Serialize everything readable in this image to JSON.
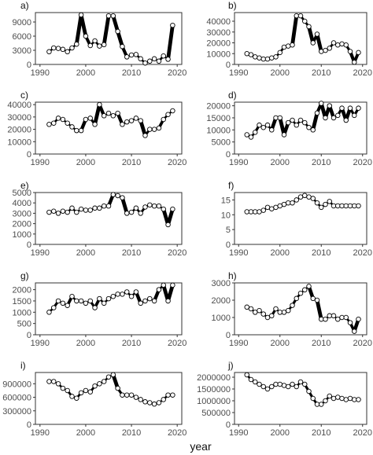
{
  "figure": {
    "xlabel": "year"
  },
  "chart_data": [
    {
      "panel": "a)",
      "type": "line",
      "x": [
        1992,
        1993,
        1994,
        1995,
        1996,
        1997,
        1998,
        1999,
        2000,
        2001,
        2002,
        2003,
        2004,
        2005,
        2006,
        2007,
        2008,
        2009,
        2010,
        2011,
        2012,
        2013,
        2014,
        2015,
        2016,
        2017,
        2018,
        2019
      ],
      "y": [
        2700,
        3500,
        3400,
        3200,
        2700,
        3500,
        4300,
        10500,
        6000,
        4000,
        5000,
        3900,
        4200,
        10300,
        10300,
        7000,
        3800,
        1600,
        2000,
        2100,
        1200,
        300,
        700,
        1200,
        700,
        1800,
        1100,
        8300
      ],
      "xlim": [
        1989,
        2021
      ],
      "ylim": [
        0,
        11000
      ],
      "yticks": [
        0,
        3000,
        6000,
        9000
      ],
      "ytick_labels": [
        "0",
        "3000",
        "6000",
        "9000"
      ],
      "xticks": [
        1990,
        2000,
        2010,
        2020
      ],
      "grid": false
    },
    {
      "panel": "b)",
      "type": "line",
      "x": [
        1992,
        1993,
        1994,
        1995,
        1996,
        1997,
        1998,
        1999,
        2000,
        2001,
        2002,
        2003,
        2004,
        2005,
        2006,
        2007,
        2008,
        2009,
        2010,
        2011,
        2012,
        2013,
        2014,
        2015,
        2016,
        2017,
        2018,
        2019
      ],
      "y": [
        10000,
        9000,
        7000,
        6000,
        5000,
        5000,
        6000,
        7000,
        11000,
        16000,
        17000,
        18000,
        45000,
        45000,
        40000,
        35000,
        20000,
        28000,
        12000,
        13000,
        15000,
        20000,
        18000,
        19000,
        18000,
        12000,
        2000,
        11000
      ],
      "xlim": [
        1989,
        2021
      ],
      "ylim": [
        0,
        48000
      ],
      "yticks": [
        0,
        10000,
        20000,
        30000,
        40000
      ],
      "ytick_labels": [
        "0",
        "10000",
        "20000",
        "30000",
        "40000"
      ],
      "xticks": [
        1990,
        2000,
        2010,
        2020
      ],
      "grid": false
    },
    {
      "panel": "c)",
      "type": "line",
      "x": [
        1992,
        1993,
        1994,
        1995,
        1996,
        1997,
        1998,
        1999,
        2000,
        2001,
        2002,
        2003,
        2004,
        2005,
        2006,
        2007,
        2008,
        2009,
        2010,
        2011,
        2012,
        2013,
        2014,
        2015,
        2016,
        2017,
        2018,
        2019
      ],
      "y": [
        24000,
        25000,
        29000,
        28000,
        25000,
        22000,
        19000,
        19000,
        28000,
        29000,
        24000,
        40000,
        31000,
        33000,
        31000,
        33000,
        24000,
        26000,
        27000,
        29000,
        27000,
        15000,
        20000,
        20000,
        21000,
        28000,
        32000,
        35000
      ],
      "xlim": [
        1989,
        2021
      ],
      "ylim": [
        0,
        42000
      ],
      "yticks": [
        0,
        10000,
        20000,
        30000,
        40000
      ],
      "ytick_labels": [
        "0",
        "10000",
        "20000",
        "30000",
        "40000"
      ],
      "xticks": [
        1990,
        2000,
        2010,
        2020
      ],
      "grid": false
    },
    {
      "panel": "d)",
      "type": "line",
      "x": [
        1992,
        1993,
        1994,
        1995,
        1996,
        1997,
        1998,
        1999,
        2000,
        2001,
        2002,
        2003,
        2004,
        2005,
        2006,
        2007,
        2008,
        2009,
        2010,
        2011,
        2012,
        2013,
        2014,
        2015,
        2016,
        2017,
        2018,
        2019
      ],
      "y": [
        8000,
        7000,
        9000,
        12000,
        11000,
        12000,
        10000,
        15000,
        15000,
        8000,
        13000,
        14000,
        12000,
        14000,
        13000,
        11000,
        10000,
        17000,
        21000,
        15000,
        20000,
        15000,
        16000,
        19000,
        14000,
        19000,
        16000,
        19000
      ],
      "xlim": [
        1989,
        2021
      ],
      "ylim": [
        0,
        21500
      ],
      "yticks": [
        0,
        5000,
        10000,
        15000,
        20000
      ],
      "ytick_labels": [
        "0",
        "5000",
        "10000",
        "15000",
        "20000"
      ],
      "xticks": [
        1990,
        2000,
        2010,
        2020
      ],
      "grid": false
    },
    {
      "panel": "e)",
      "type": "line",
      "x": [
        1992,
        1993,
        1994,
        1995,
        1996,
        1997,
        1998,
        1999,
        2000,
        2001,
        2002,
        2003,
        2004,
        2005,
        2006,
        2007,
        2008,
        2009,
        2010,
        2011,
        2012,
        2013,
        2014,
        2015,
        2016,
        2017,
        2018,
        2019
      ],
      "y": [
        3100,
        3200,
        3000,
        3200,
        3100,
        3500,
        3100,
        3400,
        3300,
        3300,
        3500,
        3500,
        3700,
        3700,
        4800,
        4700,
        4500,
        3000,
        3100,
        3500,
        3000,
        3600,
        3800,
        3700,
        3700,
        3400,
        1900,
        3400
      ],
      "xlim": [
        1989,
        2021
      ],
      "ylim": [
        0,
        5000
      ],
      "yticks": [
        0,
        1000,
        2000,
        3000,
        4000,
        5000
      ],
      "ytick_labels": [
        "0",
        "1000",
        "2000",
        "3000",
        "4000",
        "5000"
      ],
      "xticks": [
        1990,
        2000,
        2010,
        2020
      ],
      "grid": false
    },
    {
      "panel": "f)",
      "type": "line",
      "x": [
        1992,
        1993,
        1994,
        1995,
        1996,
        1997,
        1998,
        1999,
        2000,
        2001,
        2002,
        2003,
        2004,
        2005,
        2006,
        2007,
        2008,
        2009,
        2010,
        2011,
        2012,
        2013,
        2014,
        2015,
        2016,
        2017,
        2018,
        2019
      ],
      "y": [
        11,
        11,
        11,
        11,
        11.5,
        12.5,
        12,
        12.5,
        13,
        13.5,
        14,
        14,
        15,
        16,
        16.5,
        16,
        15.5,
        14,
        12.5,
        13.5,
        14.5,
        13,
        13,
        13,
        13,
        13,
        13,
        13
      ],
      "xlim": [
        1989,
        2021
      ],
      "ylim": [
        0,
        17.5
      ],
      "yticks": [
        0,
        5,
        10,
        15
      ],
      "ytick_labels": [
        "0",
        "5",
        "10",
        "15"
      ],
      "xticks": [
        1990,
        2000,
        2010,
        2020
      ],
      "grid": false
    },
    {
      "panel": "g)",
      "type": "line",
      "x": [
        1992,
        1993,
        1994,
        1995,
        1996,
        1997,
        1998,
        1999,
        2000,
        2001,
        2002,
        2003,
        2004,
        2005,
        2006,
        2007,
        2008,
        2009,
        2010,
        2011,
        2012,
        2013,
        2014,
        2015,
        2016,
        2017,
        2018,
        2019
      ],
      "y": [
        1000,
        1200,
        1500,
        1400,
        1300,
        1700,
        1500,
        1500,
        1400,
        1500,
        1200,
        1600,
        1400,
        1600,
        1700,
        1800,
        1800,
        1900,
        1700,
        1900,
        1400,
        1500,
        1600,
        1500,
        2000,
        2200,
        1500,
        2200
      ],
      "xlim": [
        1989,
        2021
      ],
      "ylim": [
        0,
        2300
      ],
      "yticks": [
        0,
        500,
        1000,
        1500,
        2000
      ],
      "ytick_labels": [
        "0",
        "500",
        "1000",
        "1500",
        "2000"
      ],
      "xticks": [
        1990,
        2000,
        2010,
        2020
      ],
      "grid": false
    },
    {
      "panel": "h)",
      "type": "line",
      "x": [
        1992,
        1993,
        1994,
        1995,
        1996,
        1997,
        1998,
        1999,
        2000,
        2001,
        2002,
        2003,
        2004,
        2005,
        2006,
        2007,
        2008,
        2009,
        2010,
        2011,
        2012,
        2013,
        2014,
        2015,
        2016,
        2017,
        2018,
        2019
      ],
      "y": [
        1600,
        1500,
        1300,
        1400,
        1200,
        1000,
        1100,
        1500,
        1300,
        1300,
        1400,
        1700,
        2100,
        2400,
        2600,
        2800,
        2100,
        2000,
        900,
        900,
        1100,
        1100,
        900,
        1000,
        1000,
        700,
        200,
        900
      ],
      "xlim": [
        1989,
        2021
      ],
      "ylim": [
        0,
        3000
      ],
      "yticks": [
        0,
        1000,
        2000,
        3000
      ],
      "ytick_labels": [
        "0",
        "1000",
        "2000",
        "3000"
      ],
      "xticks": [
        1990,
        2000,
        2010,
        2020
      ],
      "grid": false
    },
    {
      "panel": "i)",
      "type": "line",
      "x": [
        1992,
        1993,
        1994,
        1995,
        1996,
        1997,
        1998,
        1999,
        2000,
        2001,
        2002,
        2003,
        2004,
        2005,
        2006,
        2007,
        2008,
        2009,
        2010,
        2011,
        2012,
        2013,
        2014,
        2015,
        2016,
        2017,
        2018,
        2019
      ],
      "y": [
        950000,
        950000,
        900000,
        800000,
        750000,
        620000,
        580000,
        700000,
        750000,
        720000,
        850000,
        900000,
        950000,
        1050000,
        1100000,
        800000,
        650000,
        650000,
        650000,
        600000,
        550000,
        500000,
        480000,
        450000,
        480000,
        550000,
        650000,
        650000
      ],
      "xlim": [
        1989,
        2021
      ],
      "ylim": [
        0,
        1150000
      ],
      "yticks": [
        0,
        300000,
        600000,
        900000
      ],
      "ytick_labels": [
        "0",
        "300000",
        "600000",
        "900000"
      ],
      "xticks": [
        1990,
        2000,
        2010,
        2020
      ],
      "grid": false
    },
    {
      "panel": "j)",
      "type": "line",
      "x": [
        1992,
        1993,
        1994,
        1995,
        1996,
        1997,
        1998,
        1999,
        2000,
        2001,
        2002,
        2003,
        2004,
        2005,
        2006,
        2007,
        2008,
        2009,
        2010,
        2011,
        2012,
        2013,
        2014,
        2015,
        2016,
        2017,
        2018,
        2019
      ],
      "y": [
        2100000,
        1900000,
        1800000,
        1700000,
        1600000,
        1500000,
        1600000,
        1700000,
        1700000,
        1650000,
        1600000,
        1700000,
        1600000,
        1800000,
        1700000,
        1400000,
        1100000,
        850000,
        850000,
        1000000,
        1200000,
        1100000,
        1150000,
        1100000,
        1050000,
        1100000,
        1050000,
        1050000
      ],
      "xlim": [
        1989,
        2021
      ],
      "ylim": [
        0,
        2200000
      ],
      "yticks": [
        0,
        500000,
        1000000,
        1500000,
        2000000
      ],
      "ytick_labels": [
        "0",
        "500000",
        "1000000",
        "1500000",
        "2000000"
      ],
      "xticks": [
        1990,
        2000,
        2010,
        2020
      ],
      "grid": false
    }
  ]
}
